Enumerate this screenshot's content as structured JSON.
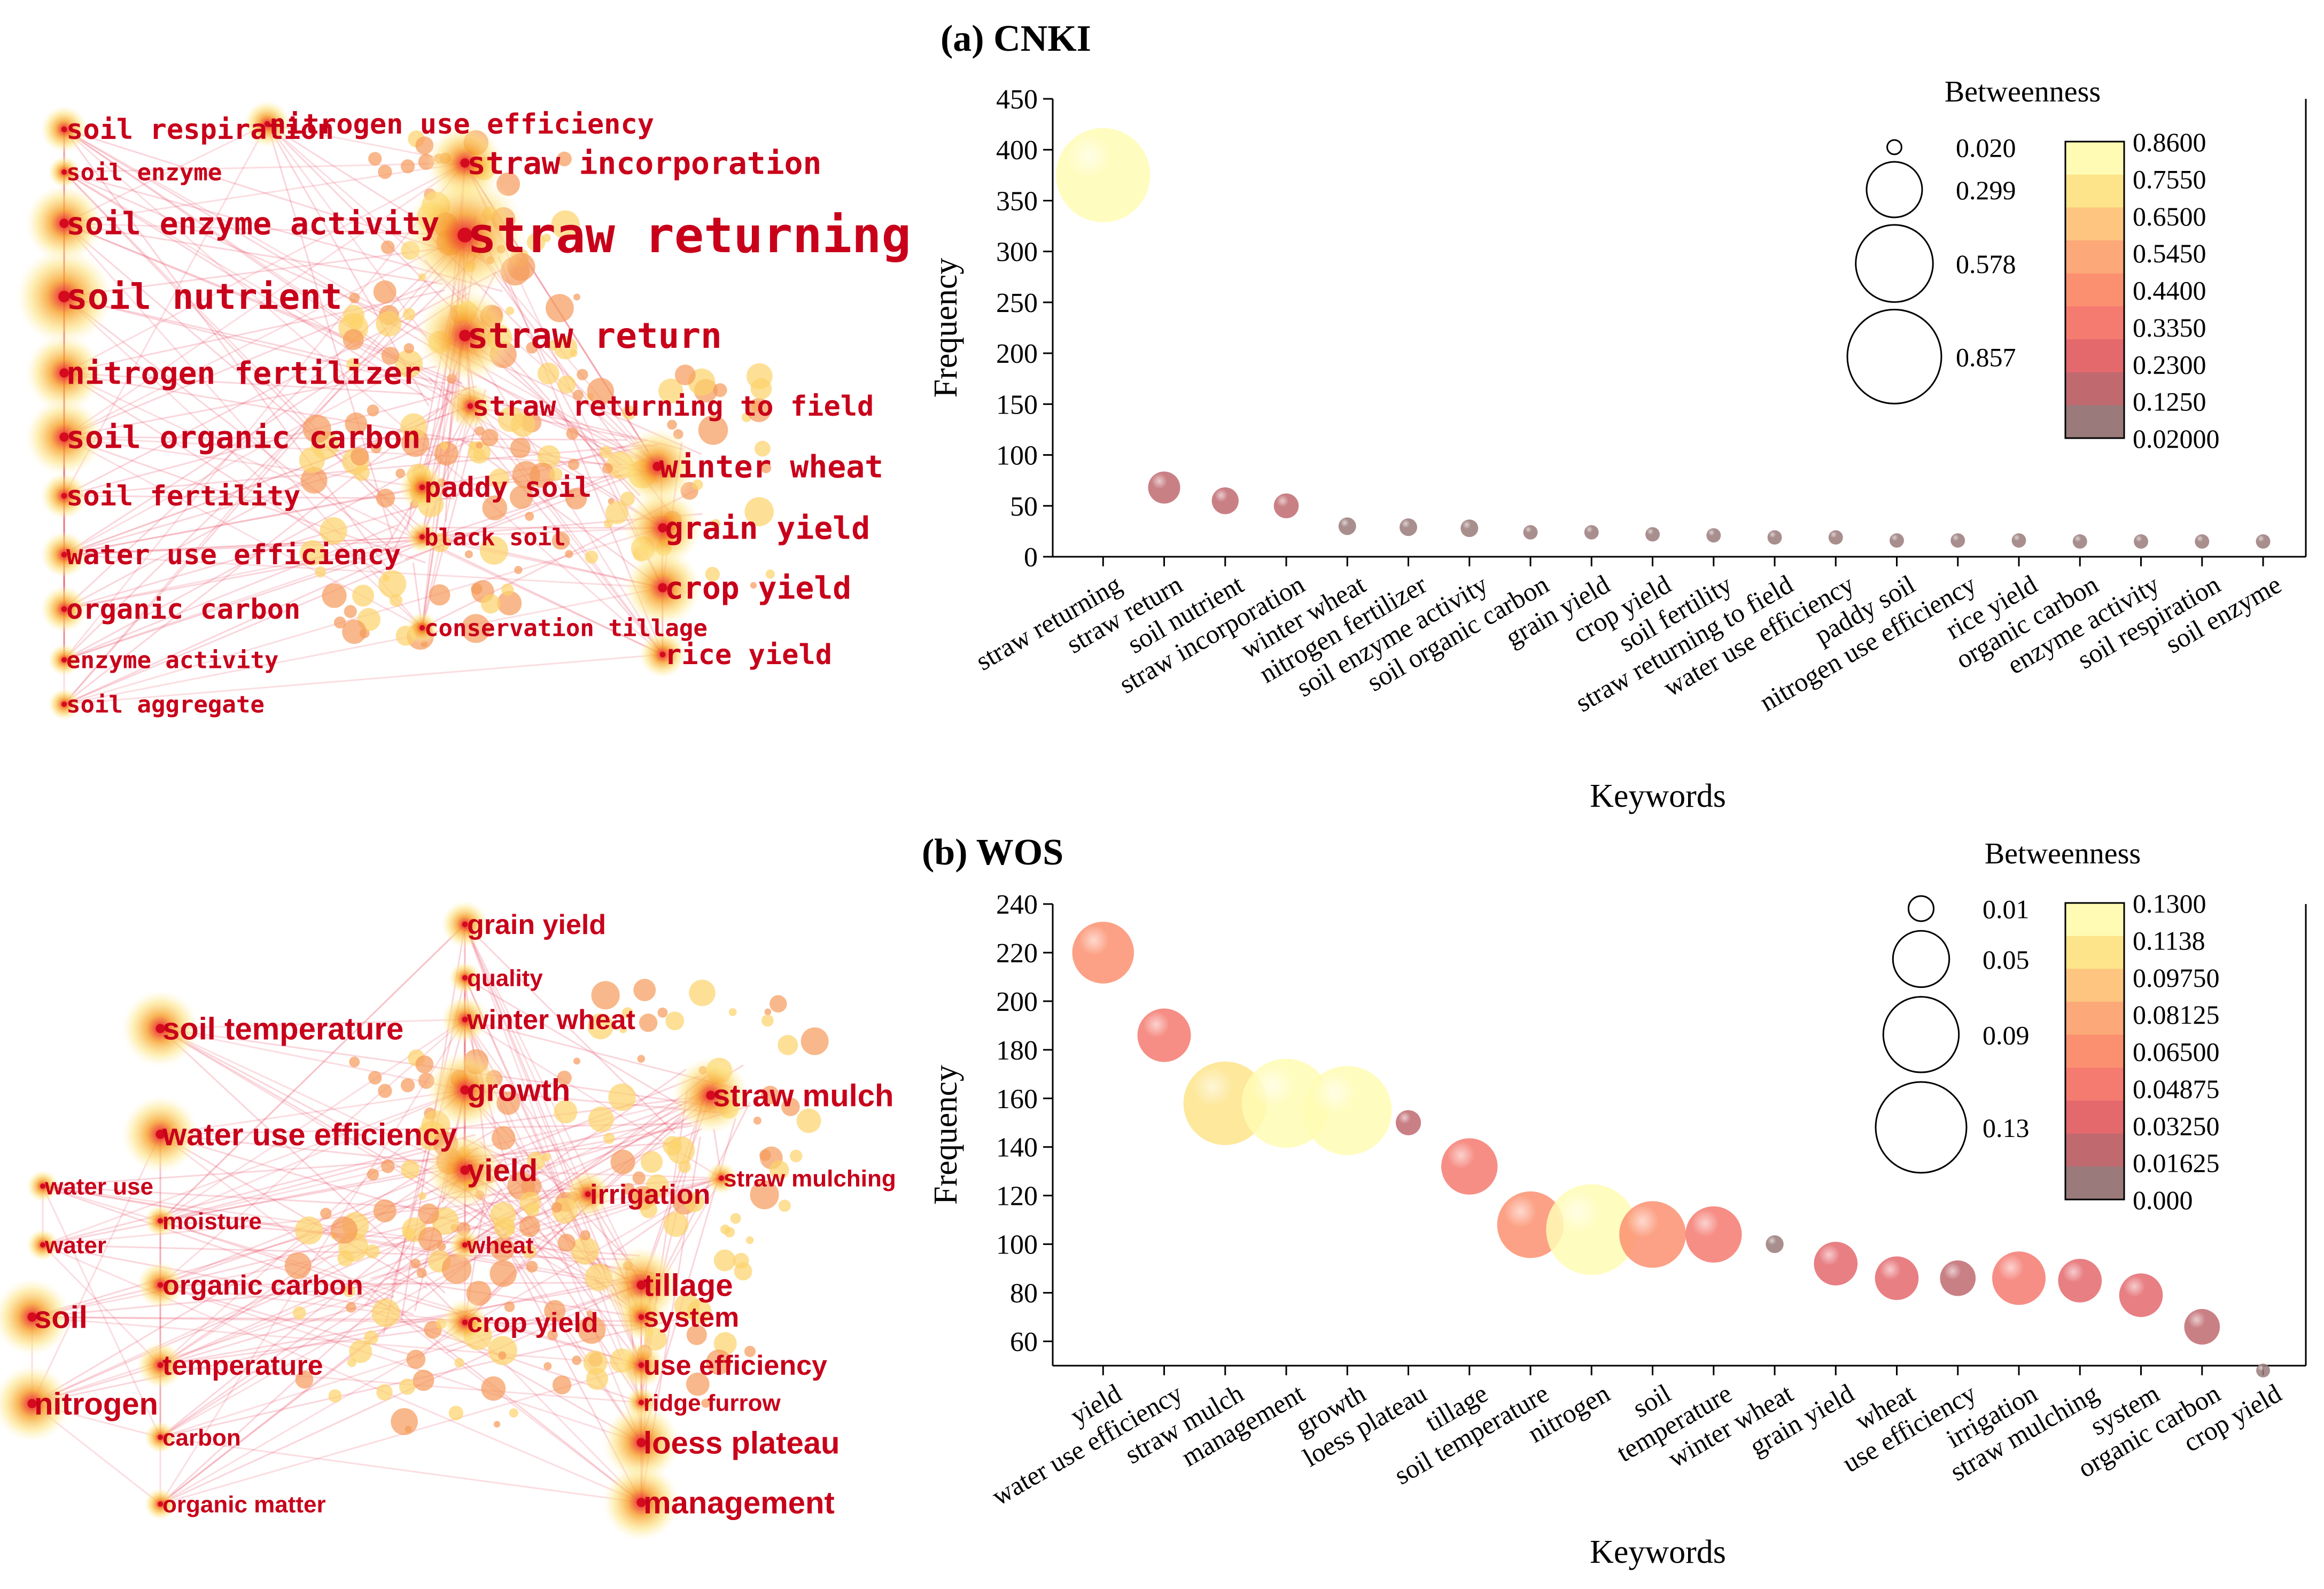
{
  "panels": [
    {
      "label": "(a)  CNKI",
      "network": {
        "nodes": [
          {
            "label": "soil respiration",
            "size": "s"
          },
          {
            "label": "nitrogen use efficiency",
            "size": "s"
          },
          {
            "label": "soil enzyme",
            "size": "xs"
          },
          {
            "label": "straw incorporation",
            "size": "m"
          },
          {
            "label": "soil enzyme activity",
            "size": "m"
          },
          {
            "label": "straw returning",
            "size": "xl"
          },
          {
            "label": "soil nutrient",
            "size": "l"
          },
          {
            "label": "straw return",
            "size": "l"
          },
          {
            "label": "nitrogen fertilizer",
            "size": "m"
          },
          {
            "label": "straw returning to field",
            "size": "s"
          },
          {
            "label": "soil organic carbon",
            "size": "m"
          },
          {
            "label": "winter wheat",
            "size": "m"
          },
          {
            "label": "paddy soil",
            "size": "s"
          },
          {
            "label": "soil fertility",
            "size": "s"
          },
          {
            "label": "grain yield",
            "size": "m"
          },
          {
            "label": "black soil",
            "size": "xs"
          },
          {
            "label": "water use efficiency",
            "size": "s"
          },
          {
            "label": "crop yield",
            "size": "m"
          },
          {
            "label": "organic carbon",
            "size": "s"
          },
          {
            "label": "conservation tillage",
            "size": "xs"
          },
          {
            "label": "rice yield",
            "size": "s"
          },
          {
            "label": "enzyme activity",
            "size": "xs"
          },
          {
            "label": "soil aggregate",
            "size": "xs"
          }
        ]
      }
    },
    {
      "label": "(b)  WOS",
      "network": {
        "nodes": [
          {
            "label": "grain yield",
            "size": "s"
          },
          {
            "label": "quality",
            "size": "xs"
          },
          {
            "label": "soil temperature",
            "size": "m"
          },
          {
            "label": "winter wheat",
            "size": "s"
          },
          {
            "label": "growth",
            "size": "m"
          },
          {
            "label": "straw mulch",
            "size": "m"
          },
          {
            "label": "water use efficiency",
            "size": "m"
          },
          {
            "label": "yield",
            "size": "m"
          },
          {
            "label": "water use",
            "size": "xs"
          },
          {
            "label": "irrigation",
            "size": "s"
          },
          {
            "label": "straw mulching",
            "size": "xs"
          },
          {
            "label": "moisture",
            "size": "xs"
          },
          {
            "label": "water",
            "size": "xs"
          },
          {
            "label": "wheat",
            "size": "xs"
          },
          {
            "label": "organic carbon",
            "size": "s"
          },
          {
            "label": "tillage",
            "size": "m"
          },
          {
            "label": "soil",
            "size": "m"
          },
          {
            "label": "crop yield",
            "size": "s"
          },
          {
            "label": "system",
            "size": "s"
          },
          {
            "label": "temperature",
            "size": "s"
          },
          {
            "label": "use efficiency",
            "size": "s"
          },
          {
            "label": "ridge furrow",
            "size": "xs"
          },
          {
            "label": "nitrogen",
            "size": "m"
          },
          {
            "label": "carbon",
            "size": "xs"
          },
          {
            "label": "loess plateau",
            "size": "m"
          },
          {
            "label": "organic matter",
            "size": "xs"
          },
          {
            "label": "management",
            "size": "m"
          }
        ]
      }
    }
  ],
  "chart_data": [
    {
      "type": "scatter",
      "title": "(a)  CNKI",
      "xlabel": "Keywords",
      "ylabel": "Frequency",
      "ylim": [
        0,
        450
      ],
      "yticks": [
        0,
        50,
        100,
        150,
        200,
        250,
        300,
        350,
        400,
        450
      ],
      "categories": [
        "straw returning",
        "straw return",
        "soil nutrient",
        "straw incorporation",
        "winter wheat",
        "nitrogen fertilizer",
        "soil enzyme activity",
        "soil organic carbon",
        "grain yield",
        "crop yield",
        "soil fertility",
        "straw returning to field",
        "water use efficiency",
        "paddy soil",
        "nitrogen use efficiency",
        "rice yield",
        "organic carbon",
        "enzyme activity",
        "soil respiration",
        "soil enzyme"
      ],
      "frequency": [
        375,
        68,
        55,
        50,
        30,
        29,
        28,
        24,
        24,
        22,
        21,
        19,
        19,
        16,
        16,
        16,
        15,
        15,
        15,
        15
      ],
      "betweenness": [
        0.86,
        0.1,
        0.07,
        0.06,
        0.03,
        0.03,
        0.03,
        0.02,
        0.02,
        0.02,
        0.02,
        0.02,
        0.02,
        0.02,
        0.02,
        0.02,
        0.02,
        0.02,
        0.02,
        0.02
      ],
      "legend_title": "Betweenness",
      "size_legend": [
        "0.020",
        "0.299",
        "0.578",
        "0.857"
      ],
      "size_values": [
        0.02,
        0.299,
        0.578,
        0.857
      ],
      "colorbar_labels": [
        "0.8600",
        "0.7550",
        "0.6500",
        "0.5450",
        "0.4400",
        "0.3350",
        "0.2300",
        "0.1250",
        "0.02000"
      ],
      "colorbar_colors": [
        "#fffbb4",
        "#fde48a",
        "#fdc580",
        "#fca878",
        "#fb9070",
        "#f57a70",
        "#e4696d",
        "#c06a70",
        "#9a7a7a"
      ]
    },
    {
      "type": "scatter",
      "title": "(b)  WOS",
      "xlabel": "Keywords",
      "ylabel": "Frequency",
      "ylim": [
        50,
        240
      ],
      "yticks": [
        60,
        80,
        100,
        120,
        140,
        160,
        180,
        200,
        220,
        240
      ],
      "categories": [
        "yield",
        "water use efficiency",
        "straw mulch",
        "management",
        "growth",
        "loess plateau",
        "tillage",
        "soil temperature",
        "nitrogen",
        "soil",
        "temperature",
        "winter wheat",
        "grain yield",
        "wheat",
        "use efficiency",
        "irrigation",
        "straw mulching",
        "system",
        "organic carbon",
        "crop yield"
      ],
      "frequency": [
        220,
        186,
        158,
        158,
        155,
        150,
        132,
        108,
        106,
        104,
        104,
        100,
        92,
        86,
        86,
        86,
        85,
        79,
        66,
        48
      ],
      "betweenness": [
        0.06,
        0.045,
        0.11,
        0.125,
        0.125,
        0.01,
        0.05,
        0.07,
        0.13,
        0.07,
        0.05,
        0.005,
        0.03,
        0.03,
        0.02,
        0.045,
        0.03,
        0.03,
        0.02,
        0.003
      ],
      "legend_title": "Betweenness",
      "size_legend": [
        "0.01",
        "0.05",
        "0.09",
        "0.13"
      ],
      "size_values": [
        0.01,
        0.05,
        0.09,
        0.13
      ],
      "colorbar_labels": [
        "0.1300",
        "0.1138",
        "0.09750",
        "0.08125",
        "0.06500",
        "0.04875",
        "0.03250",
        "0.01625",
        "0.000"
      ],
      "colorbar_colors": [
        "#fffbb4",
        "#fde48a",
        "#fdc580",
        "#fca878",
        "#fb9070",
        "#f57a70",
        "#e4696d",
        "#c06a70",
        "#9a7a7a"
      ]
    }
  ]
}
